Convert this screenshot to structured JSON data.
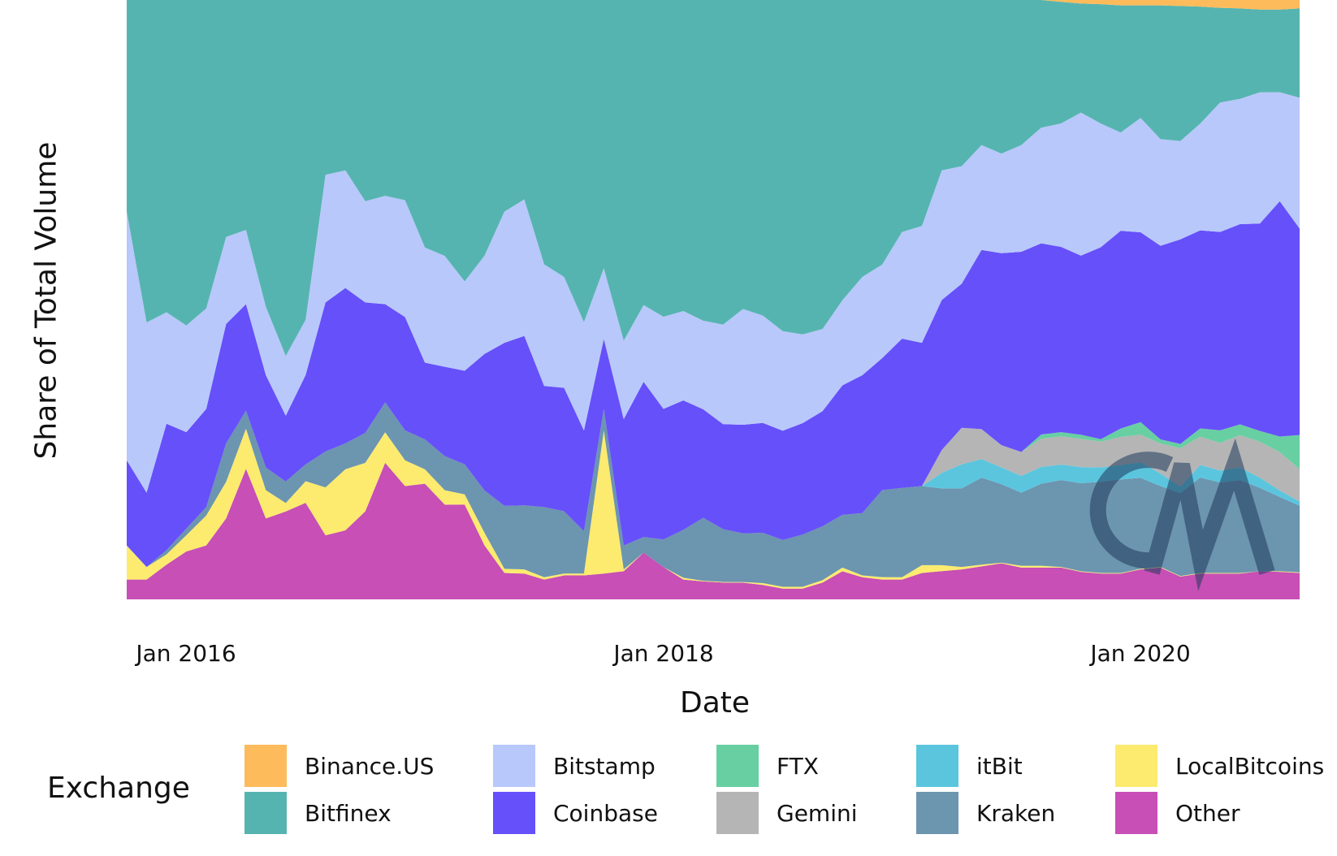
{
  "chart_data": {
    "type": "area",
    "stacked": "percent",
    "title": "",
    "xlabel": "Date",
    "ylabel": "Share of Total Volume",
    "ylim": [
      0,
      100
    ],
    "x_ticks": [
      {
        "label": "Jan 2016",
        "date": "2016-01"
      },
      {
        "label": "Jan 2018",
        "date": "2018-01"
      },
      {
        "label": "Jan 2020",
        "date": "2020-01"
      }
    ],
    "legend_title": "Exchange",
    "legend_position": "bottom",
    "x": [
      "2015-10",
      "2015-11",
      "2015-12",
      "2016-01",
      "2016-02",
      "2016-03",
      "2016-04",
      "2016-05",
      "2016-06",
      "2016-07",
      "2016-08",
      "2016-09",
      "2016-10",
      "2016-11",
      "2016-12",
      "2017-01",
      "2017-02",
      "2017-03",
      "2017-04",
      "2017-05",
      "2017-06",
      "2017-07",
      "2017-08",
      "2017-09",
      "2017-10",
      "2017-11",
      "2017-12",
      "2018-01",
      "2018-02",
      "2018-03",
      "2018-04",
      "2018-05",
      "2018-06",
      "2018-07",
      "2018-08",
      "2018-09",
      "2018-10",
      "2018-11",
      "2018-12",
      "2019-01",
      "2019-02",
      "2019-03",
      "2019-04",
      "2019-05",
      "2019-06",
      "2019-07",
      "2019-08",
      "2019-09",
      "2019-10",
      "2019-11",
      "2019-12",
      "2020-01",
      "2020-02",
      "2020-03",
      "2020-04",
      "2020-05",
      "2020-06",
      "2020-07",
      "2020-08",
      "2020-09"
    ],
    "series": [
      {
        "name": "Binance.US",
        "color": "#FDBB5B",
        "values": [
          0,
          0,
          0,
          0,
          0,
          0,
          0,
          0,
          0,
          0,
          0,
          0,
          0,
          0,
          0,
          0,
          0,
          0,
          0,
          0,
          0,
          0,
          0,
          0,
          0,
          0,
          0,
          0,
          0,
          0,
          0,
          0,
          0,
          0,
          0,
          0,
          0,
          0,
          0,
          0,
          0,
          0,
          0,
          0,
          0,
          0,
          0,
          0.3,
          0.6,
          0.7,
          0.9,
          0.9,
          0.9,
          1.0,
          1.1,
          1.3,
          1.4,
          1.6,
          1.6,
          1.4
        ]
      },
      {
        "name": "Bitfinex",
        "color": "#56B4B0",
        "values": [
          35.3,
          53.8,
          52.1,
          54.3,
          51.5,
          39.5,
          38.4,
          51.2,
          59.5,
          53.3,
          29.2,
          28.4,
          33.6,
          32.7,
          33.4,
          41.3,
          42.7,
          46.9,
          42.7,
          35.3,
          33.3,
          44.1,
          46.2,
          53.8,
          44.8,
          56.9,
          50.9,
          52.9,
          51.9,
          53.5,
          54.1,
          51.5,
          52.6,
          55.2,
          55.8,
          54.9,
          50.1,
          46.2,
          44.1,
          38.7,
          37.7,
          28.4,
          27.7,
          24.2,
          25.6,
          24.2,
          21.3,
          20.3,
          18.2,
          19.9,
          21.2,
          18.8,
          22.3,
          22.5,
          19.5,
          15.8,
          15.1,
          13.8,
          13.8,
          14.9
        ]
      },
      {
        "name": "Bitstamp",
        "color": "#B8C8FB",
        "values": [
          41.5,
          28.4,
          18.6,
          17.8,
          16.8,
          14.5,
          12.4,
          11.4,
          10.0,
          9.2,
          21.3,
          19.6,
          16.9,
          18.1,
          19.5,
          19.2,
          18.5,
          14.9,
          16.4,
          21.9,
          22.8,
          20.3,
          18.5,
          18.1,
          11.8,
          13.1,
          12.8,
          15.4,
          14.9,
          14.8,
          16.6,
          19.3,
          17.9,
          16.6,
          14.8,
          13.7,
          14.2,
          16.4,
          15.6,
          17.8,
          19.5,
          21.6,
          19.6,
          17.5,
          16.6,
          17.8,
          19.3,
          20.6,
          23.9,
          20.6,
          16.4,
          19.1,
          17.8,
          16.4,
          17.8,
          21.6,
          20.9,
          21.9,
          18.2,
          21.8
        ]
      },
      {
        "name": "Coinbase",
        "color": "#6650FA",
        "values": [
          14.2,
          12.4,
          21.1,
          16.1,
          16.4,
          19.9,
          17.8,
          15.4,
          11.0,
          14.9,
          24.9,
          25.9,
          21.8,
          16.4,
          18.9,
          12.8,
          14.9,
          15.6,
          22.8,
          27.2,
          28.3,
          20.2,
          20.6,
          16.8,
          11.7,
          21.1,
          25.9,
          21.8,
          21.6,
          18.1,
          17.5,
          18.1,
          18.3,
          18.2,
          18.6,
          19.2,
          21.6,
          23.0,
          22.0,
          24.9,
          23.9,
          25.0,
          24.0,
          29.9,
          32.0,
          33.4,
          31.9,
          30.9,
          29.9,
          32.0,
          33.0,
          31.7,
          32.3,
          34.1,
          33.0,
          33.1,
          33.4,
          34.6,
          39.3,
          34.4
        ]
      },
      {
        "name": "FTX",
        "color": "#68CFA2",
        "values": [
          0,
          0,
          0,
          0,
          0,
          0,
          0,
          0,
          0,
          0,
          0,
          0,
          0,
          0,
          0,
          0,
          0,
          0,
          0,
          0,
          0,
          0,
          0,
          0,
          0,
          0,
          0,
          0,
          0,
          0,
          0,
          0,
          0,
          0,
          0,
          0,
          0,
          0,
          0,
          0,
          0,
          0,
          0,
          0,
          0,
          0,
          0.7,
          0.7,
          0.7,
          0.4,
          1.4,
          2.1,
          0.7,
          0.7,
          1.4,
          2.1,
          1.8,
          1.8,
          2.6,
          5.7
        ]
      },
      {
        "name": "Gemini",
        "color": "#B5B5B5",
        "values": [
          0,
          0,
          0,
          0,
          0,
          0,
          0,
          0,
          0,
          0,
          0,
          0,
          0,
          0,
          0,
          0,
          0,
          0,
          0,
          0,
          0,
          0,
          0,
          0,
          0,
          0,
          0,
          0,
          0,
          0,
          0,
          0,
          0,
          0,
          0,
          0,
          0,
          0,
          0,
          0,
          0,
          3.8,
          6.1,
          5.0,
          3.7,
          4.0,
          4.7,
          4.7,
          4.7,
          4.3,
          4.7,
          4.6,
          5.0,
          6.4,
          4.7,
          4.6,
          5.4,
          6.0,
          6.4,
          5.4
        ]
      },
      {
        "name": "itBit",
        "color": "#5BC5DE",
        "values": [
          0,
          0,
          0,
          0,
          0,
          0,
          0,
          0,
          0,
          0,
          0,
          0,
          0,
          0,
          0,
          0,
          0,
          0,
          0,
          0,
          0,
          0,
          0,
          0,
          0,
          0,
          0,
          0,
          0,
          0,
          0,
          0,
          0,
          0,
          0,
          0,
          0,
          0,
          0,
          0,
          0,
          2.6,
          4.0,
          3.1,
          2.8,
          2.8,
          2.8,
          2.6,
          2.7,
          2.4,
          2.4,
          2.6,
          2.1,
          1.1,
          2.1,
          2.0,
          2.1,
          1.7,
          1.1,
          0.7
        ]
      },
      {
        "name": "Kraken",
        "color": "#6C95AF",
        "values": [
          0,
          0,
          0.7,
          1.1,
          1.4,
          6.4,
          3.0,
          3.8,
          3.6,
          2.8,
          6.0,
          4.3,
          5.0,
          5.0,
          5.0,
          5.0,
          5.7,
          5.0,
          7.1,
          10.5,
          10.7,
          11.7,
          10.4,
          7.1,
          3.6,
          4.0,
          2.6,
          4.6,
          8.0,
          10.5,
          8.8,
          8.1,
          8.4,
          7.8,
          8.7,
          9.0,
          8.8,
          10.4,
          14.5,
          14.9,
          13.2,
          12.8,
          13.1,
          14.5,
          13.1,
          12.2,
          13.7,
          14.5,
          14.7,
          15.2,
          15.6,
          15.2,
          13.5,
          13.8,
          15.9,
          15.1,
          15.5,
          13.9,
          12.4,
          11.1
        ]
      },
      {
        "name": "LocalBitcoins",
        "color": "#FDEB6F",
        "values": [
          5.7,
          2.1,
          1.7,
          2.7,
          5.0,
          6.1,
          6.7,
          4.7,
          1.4,
          3.6,
          8.0,
          10.2,
          8.1,
          5.1,
          4.3,
          2.4,
          2.4,
          1.7,
          2.1,
          0.7,
          0.7,
          0.4,
          0.3,
          0.3,
          23.9,
          0.3,
          0,
          0,
          0.3,
          0.1,
          0.1,
          0.1,
          0.3,
          0.3,
          0.3,
          0.4,
          0.6,
          0.3,
          0.4,
          0.4,
          1.3,
          1.0,
          0.4,
          0.3,
          0.1,
          0.3,
          0.3,
          0.1,
          0.1,
          0.1,
          0.1,
          0.1,
          0.1,
          0.1,
          0.1,
          0.1,
          0.1,
          0,
          0.1,
          0.1
        ]
      },
      {
        "name": "Other",
        "color": "#C74FB5",
        "values": [
          3.3,
          3.3,
          5.8,
          8.0,
          9.0,
          13.5,
          21.8,
          13.5,
          14.7,
          16.1,
          10.7,
          11.5,
          14.7,
          22.8,
          18.9,
          19.3,
          15.8,
          15.8,
          9.0,
          4.4,
          4.3,
          3.3,
          4.0,
          4.0,
          4.3,
          4.7,
          7.8,
          5.4,
          3.3,
          3.0,
          2.8,
          2.8,
          2.4,
          1.8,
          1.8,
          2.8,
          4.7,
          3.7,
          3.3,
          3.3,
          4.4,
          4.7,
          5.0,
          5.5,
          6.0,
          5.3,
          5.3,
          5.3,
          4.6,
          4.3,
          4.3,
          5.0,
          5.3,
          3.8,
          4.3,
          4.3,
          4.3,
          4.7,
          4.6,
          4.4
        ]
      }
    ],
    "stack_order_bottom_to_top": [
      "Other",
      "LocalBitcoins",
      "Kraken",
      "itBit",
      "Gemini",
      "FTX",
      "Coinbase",
      "Bitstamp",
      "Bitfinex",
      "Binance.US"
    ],
    "grid": false
  }
}
